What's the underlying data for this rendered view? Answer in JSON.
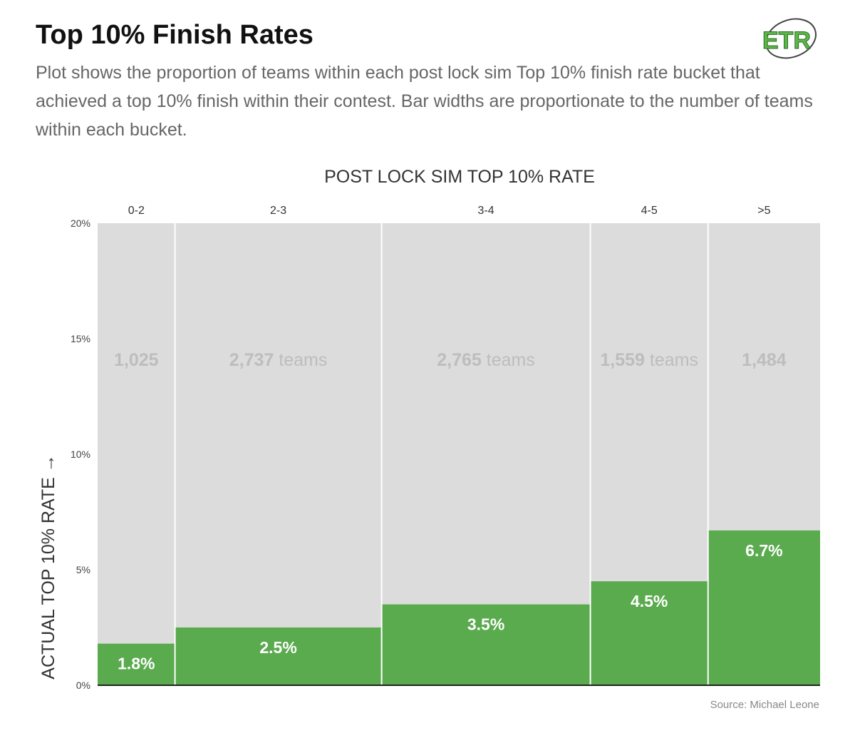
{
  "header": {
    "title": "Top 10% Finish Rates",
    "subtitle": "Plot shows the proportion of teams within each post lock sim Top 10% finish rate bucket that achieved a top 10% finish within their contest. Bar widths are proportionate to the number of teams within each bucket.",
    "logo_text": "ETR"
  },
  "footer": {
    "source": "Source: Michael Leone"
  },
  "colors": {
    "accent": "#5aaa4e",
    "background_bar": "#dcdcdc",
    "logo": "#5cb84a"
  },
  "chart_data": {
    "type": "bar",
    "variant": "variable-width (marimekko)",
    "title": "Top 10% Finish Rates",
    "xlabel": "POST LOCK SIM TOP 10% RATE",
    "ylabel": "ACTUAL TOP 10% RATE →",
    "ylim": [
      0,
      20
    ],
    "yticks": [
      0,
      5,
      10,
      15,
      20
    ],
    "ytick_labels": [
      "0%",
      "5%",
      "10%",
      "15%",
      "20%"
    ],
    "categories": [
      "0-2",
      "2-3",
      "3-4",
      "4-5",
      ">5"
    ],
    "values": [
      1.8,
      2.5,
      3.5,
      4.5,
      6.7
    ],
    "value_labels": [
      "1.8%",
      "2.5%",
      "3.5%",
      "4.5%",
      "6.7%"
    ],
    "team_counts": [
      1025,
      2737,
      2765,
      1559,
      1484
    ],
    "team_count_labels": [
      {
        "count": "1,025",
        "suffix": ""
      },
      {
        "count": "2,737",
        "suffix": " teams"
      },
      {
        "count": "2,765",
        "suffix": " teams"
      },
      {
        "count": "1,559",
        "suffix": " teams"
      },
      {
        "count": "1,484",
        "suffix": ""
      }
    ]
  }
}
